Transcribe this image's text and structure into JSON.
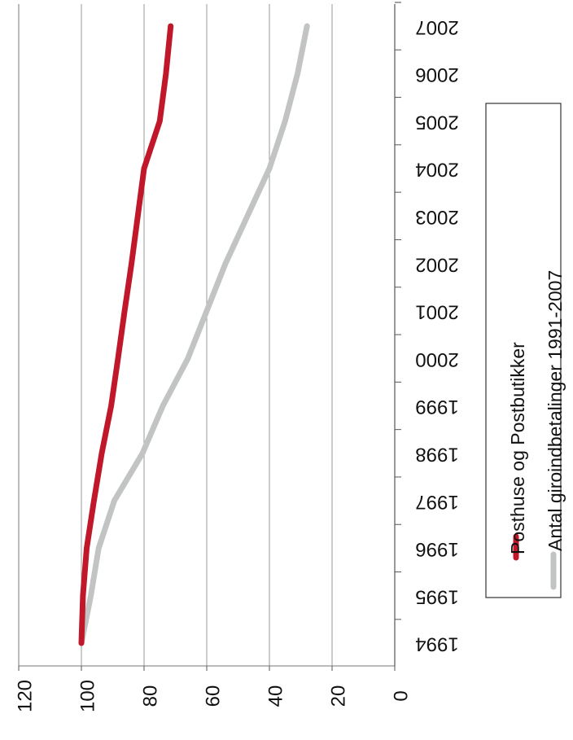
{
  "chart_data": {
    "type": "line",
    "orientation": "rotated-90-clockwise",
    "x": [
      1994,
      1995,
      1996,
      1997,
      1998,
      1999,
      2000,
      2001,
      2002,
      2003,
      2004,
      2005,
      2006,
      2007
    ],
    "x_tick_labels": [
      "1994",
      "1995",
      "1996",
      "1997",
      "1998",
      "1999",
      "2000",
      "2001",
      "2002",
      "2003",
      "2004",
      "2005",
      "2006",
      "2007"
    ],
    "ylim": [
      0,
      120
    ],
    "y_ticks": [
      0,
      20,
      40,
      60,
      80,
      100,
      120
    ],
    "y_tick_labels": [
      "0",
      "20",
      "40",
      "60",
      "80",
      "100",
      "120"
    ],
    "grid": true,
    "legend_position": "right",
    "series": [
      {
        "name": "Posthuse og Postbutikker",
        "color": "#c0182a",
        "points": [
          [
            1994,
            100
          ],
          [
            1995,
            99.5
          ],
          [
            1996,
            98.3
          ],
          [
            1997,
            96
          ],
          [
            1998,
            93.5
          ],
          [
            1999,
            90.5
          ],
          [
            2000,
            88.3
          ],
          [
            2001,
            86.2
          ],
          [
            2002,
            84
          ],
          [
            2003,
            82
          ],
          [
            2004,
            80
          ],
          [
            2005,
            75
          ],
          [
            2006,
            73
          ],
          [
            2007,
            71.5
          ]
        ]
      },
      {
        "name": "Antal giroindbetalinger 1991-2007",
        "color": "#c2c4c4",
        "points": [
          [
            1994,
            100
          ],
          [
            1995,
            97
          ],
          [
            1996,
            94.5
          ],
          [
            1997,
            89.5
          ],
          [
            1998,
            80.5
          ],
          [
            1999,
            74
          ],
          [
            2000,
            66
          ],
          [
            2001,
            60
          ],
          [
            2002,
            54
          ],
          [
            2003,
            47
          ],
          [
            2004,
            40
          ],
          [
            2005,
            35
          ],
          [
            2006,
            31
          ],
          [
            2007,
            28
          ]
        ]
      }
    ]
  }
}
